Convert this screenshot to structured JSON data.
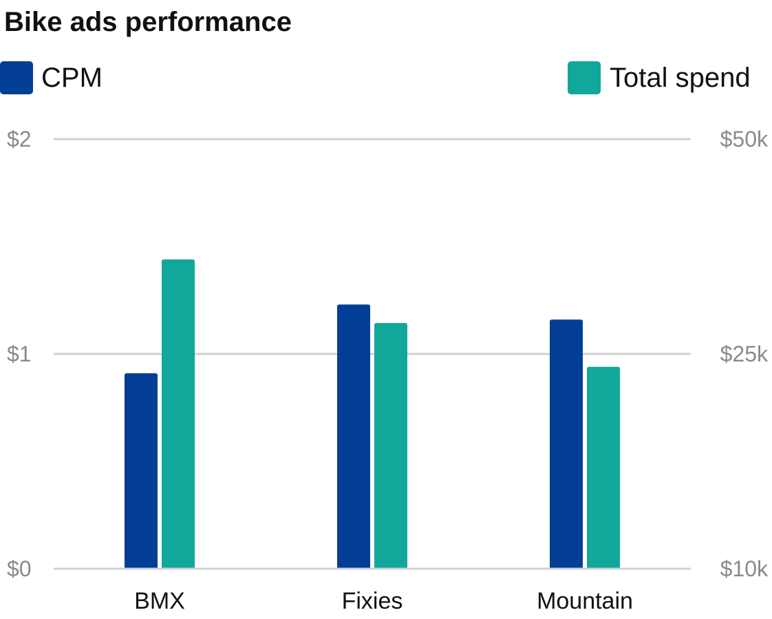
{
  "chart_data": {
    "type": "bar",
    "title": "Bike ads performance",
    "categories": [
      "BMX",
      "Fixies",
      "Mountain"
    ],
    "series": [
      {
        "name": "CPM",
        "axis": "left",
        "color": "#023e95",
        "values": [
          0.91,
          1.23,
          1.16
        ]
      },
      {
        "name": "Total spend",
        "axis": "right",
        "color": "#11a89b",
        "values": [
          36000,
          28600,
          24100
        ]
      }
    ],
    "y_left": {
      "range": [
        0,
        2
      ],
      "ticks": [
        {
          "value": 0,
          "label": "$0"
        },
        {
          "value": 1,
          "label": "$1"
        },
        {
          "value": 2,
          "label": "$2"
        }
      ]
    },
    "y_right": {
      "range": [
        10000,
        50000
      ],
      "ticks": [
        {
          "value": 10000,
          "label": "$10k"
        },
        {
          "value": 25000,
          "label": "$25k"
        },
        {
          "value": 50000,
          "label": "$50k"
        }
      ]
    },
    "grid": true,
    "legend_placement": "top"
  }
}
